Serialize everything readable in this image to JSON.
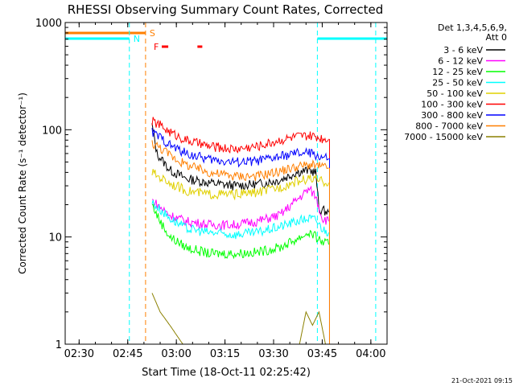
{
  "chart_data": {
    "type": "line",
    "title": "RHESSI Observing Summary Count Rates, Corrected",
    "xlabel": "Start Time (18-Oct-11 02:25:42)",
    "ylabel": "Corrected Count Rate (s⁻¹ detector⁻¹)",
    "yscale": "log",
    "ylim": [
      1,
      1000
    ],
    "xlim": [
      "02:25:42",
      "04:05:00"
    ],
    "x_ticks": [
      "02:30",
      "02:45",
      "03:00",
      "03:15",
      "03:30",
      "03:45",
      "04:00"
    ],
    "y_ticks": [
      "1",
      "10",
      "100",
      "1000"
    ],
    "legend_header": [
      "Det 1,3,4,5,6,9,",
      "Att 0"
    ],
    "legend_position": "top-right",
    "timestamp": "21-Oct-2021 09:15",
    "flags": [
      {
        "label": "S",
        "color": "#ff7f00",
        "segments": [
          [
            "02:25:42",
            "02:50:30"
          ]
        ]
      },
      {
        "label": "N",
        "color": "#00ffff",
        "segments": [
          [
            "02:25:42",
            "02:45:30"
          ],
          [
            "03:43:30",
            "04:05:00"
          ]
        ]
      },
      {
        "label": "F",
        "color": "#ff0000",
        "segments": [
          [
            "02:55:30",
            "02:57:30"
          ],
          [
            "03:06:30",
            "03:08:00"
          ]
        ]
      }
    ],
    "vlines": [
      {
        "time": "02:45:30",
        "color": "#00ffff"
      },
      {
        "time": "02:50:30",
        "color": "#ff7f00"
      },
      {
        "time": "03:43:30",
        "color": "#00ffff"
      },
      {
        "time": "04:01:30",
        "color": "#00ffff"
      }
    ],
    "series": [
      {
        "name": "3 - 6 keV",
        "color": "#000000",
        "points": [
          [
            "02:52:30",
            110
          ],
          [
            "02:54:00",
            60
          ],
          [
            "02:58:00",
            42
          ],
          [
            "03:03:00",
            35
          ],
          [
            "03:10:00",
            32
          ],
          [
            "03:18:00",
            30
          ],
          [
            "03:25:00",
            31
          ],
          [
            "03:32:00",
            34
          ],
          [
            "03:37:00",
            40
          ],
          [
            "03:41:00",
            42
          ],
          [
            "03:43:00",
            40
          ],
          [
            "03:44:00",
            18
          ],
          [
            "03:47:00",
            17
          ]
        ]
      },
      {
        "name": "6 - 12 keV",
        "color": "#ff00ff",
        "points": [
          [
            "02:52:30",
            22
          ],
          [
            "02:55:00",
            19
          ],
          [
            "02:58:00",
            16
          ],
          [
            "03:03:00",
            14
          ],
          [
            "03:10:00",
            13
          ],
          [
            "03:18:00",
            13
          ],
          [
            "03:25:00",
            14
          ],
          [
            "03:32:00",
            16
          ],
          [
            "03:37:00",
            22
          ],
          [
            "03:41:00",
            28
          ],
          [
            "03:43:00",
            24
          ],
          [
            "03:45:00",
            15
          ],
          [
            "03:47:00",
            14
          ]
        ]
      },
      {
        "name": "12 - 25 keV",
        "color": "#00ff00",
        "points": [
          [
            "02:52:30",
            20
          ],
          [
            "02:55:00",
            14
          ],
          [
            "02:58:00",
            10
          ],
          [
            "03:03:00",
            8
          ],
          [
            "03:10:00",
            7
          ],
          [
            "03:18:00",
            7
          ],
          [
            "03:25:00",
            7.2
          ],
          [
            "03:32:00",
            8
          ],
          [
            "03:37:00",
            9.5
          ],
          [
            "03:41:00",
            11
          ],
          [
            "03:43:00",
            10
          ],
          [
            "03:45:00",
            9
          ],
          [
            "03:47:00",
            8.5
          ]
        ]
      },
      {
        "name": "25 - 50 keV",
        "color": "#00ffff",
        "points": [
          [
            "02:52:30",
            21
          ],
          [
            "02:55:00",
            18
          ],
          [
            "02:58:00",
            15
          ],
          [
            "03:03:00",
            12
          ],
          [
            "03:10:00",
            11
          ],
          [
            "03:18:00",
            10.5
          ],
          [
            "03:25:00",
            11
          ],
          [
            "03:32:00",
            12.5
          ],
          [
            "03:37:00",
            14
          ],
          [
            "03:41:00",
            15
          ],
          [
            "03:43:00",
            14.5
          ],
          [
            "03:45:00",
            12
          ],
          [
            "03:47:00",
            11
          ]
        ]
      },
      {
        "name": "50 - 100 keV",
        "color": "#e0d000",
        "points": [
          [
            "02:52:30",
            40
          ],
          [
            "02:55:00",
            36
          ],
          [
            "02:58:00",
            32
          ],
          [
            "03:03:00",
            27
          ],
          [
            "03:10:00",
            25
          ],
          [
            "03:18:00",
            25
          ],
          [
            "03:25:00",
            26
          ],
          [
            "03:32:00",
            29
          ],
          [
            "03:37:00",
            33
          ],
          [
            "03:41:00",
            35
          ],
          [
            "03:43:00",
            34
          ],
          [
            "03:45:00",
            33
          ],
          [
            "03:47:00",
            32
          ]
        ]
      },
      {
        "name": "100 - 300 keV",
        "color": "#ff0000",
        "points": [
          [
            "02:52:30",
            120
          ],
          [
            "02:55:00",
            110
          ],
          [
            "02:58:00",
            95
          ],
          [
            "03:03:00",
            80
          ],
          [
            "03:10:00",
            70
          ],
          [
            "03:18:00",
            66
          ],
          [
            "03:25:00",
            70
          ],
          [
            "03:32:00",
            80
          ],
          [
            "03:37:00",
            86
          ],
          [
            "03:41:00",
            87
          ],
          [
            "03:43:00",
            86
          ],
          [
            "03:45:00",
            83
          ],
          [
            "03:47:00",
            82
          ]
        ]
      },
      {
        "name": "300 - 800 keV",
        "color": "#0000ff",
        "points": [
          [
            "02:52:30",
            95
          ],
          [
            "02:55:00",
            85
          ],
          [
            "02:58:00",
            72
          ],
          [
            "03:03:00",
            60
          ],
          [
            "03:10:00",
            53
          ],
          [
            "03:18:00",
            50
          ],
          [
            "03:25:00",
            51
          ],
          [
            "03:32:00",
            56
          ],
          [
            "03:37:00",
            60
          ],
          [
            "03:41:00",
            61
          ],
          [
            "03:43:00",
            58
          ],
          [
            "03:45:00",
            55
          ],
          [
            "03:47:00",
            54
          ]
        ]
      },
      {
        "name": "800 - 7000 keV",
        "color": "#ff7f00",
        "points": [
          [
            "02:52:30",
            75
          ],
          [
            "02:55:00",
            68
          ],
          [
            "02:58:00",
            58
          ],
          [
            "03:03:00",
            47
          ],
          [
            "03:10:00",
            40
          ],
          [
            "03:18:00",
            37
          ],
          [
            "03:25:00",
            37
          ],
          [
            "03:32:00",
            41
          ],
          [
            "03:37:00",
            45
          ],
          [
            "03:41:00",
            47
          ],
          [
            "03:43:00",
            46
          ],
          [
            "03:45:00",
            45
          ],
          [
            "03:47:00",
            44
          ]
        ]
      },
      {
        "name": "7000 - 15000 keV",
        "color": "#8b8000",
        "points": [
          [
            "02:52:30",
            3
          ],
          [
            "02:55:00",
            2
          ],
          [
            "02:58:00",
            1.5
          ],
          [
            "03:02:00",
            1
          ],
          [
            "03:38:00",
            1
          ],
          [
            "03:40:00",
            2
          ],
          [
            "03:42:00",
            1.5
          ],
          [
            "03:44:00",
            2
          ],
          [
            "03:46:00",
            1
          ]
        ]
      }
    ]
  }
}
